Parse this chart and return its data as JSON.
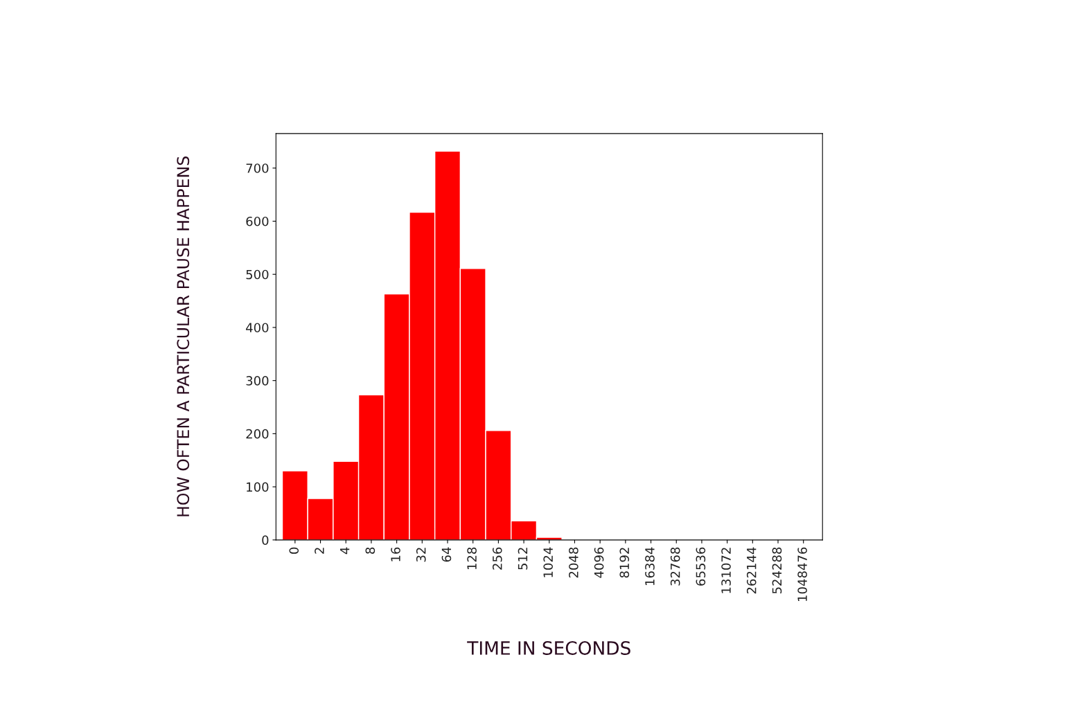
{
  "chart_data": {
    "type": "bar",
    "xlabel": "TIME IN SECONDS",
    "ylabel": "HOW OFTEN A PARTICULAR PAUSE HAPPENS",
    "categories": [
      "0",
      "2",
      "4",
      "8",
      "16",
      "32",
      "64",
      "128",
      "256",
      "512",
      "1024",
      "2048",
      "4096",
      "8192",
      "16384",
      "32768",
      "65536",
      "131072",
      "262144",
      "524288",
      "1048476"
    ],
    "values": [
      130,
      78,
      148,
      273,
      463,
      617,
      732,
      511,
      206,
      36,
      5,
      0,
      0,
      0,
      0,
      0,
      0,
      0,
      0,
      0,
      0
    ],
    "color": "#ff0000",
    "ylim": [
      0,
      765
    ],
    "yticks": [
      0,
      100,
      200,
      300,
      400,
      500,
      600,
      700
    ],
    "grid": false
  }
}
